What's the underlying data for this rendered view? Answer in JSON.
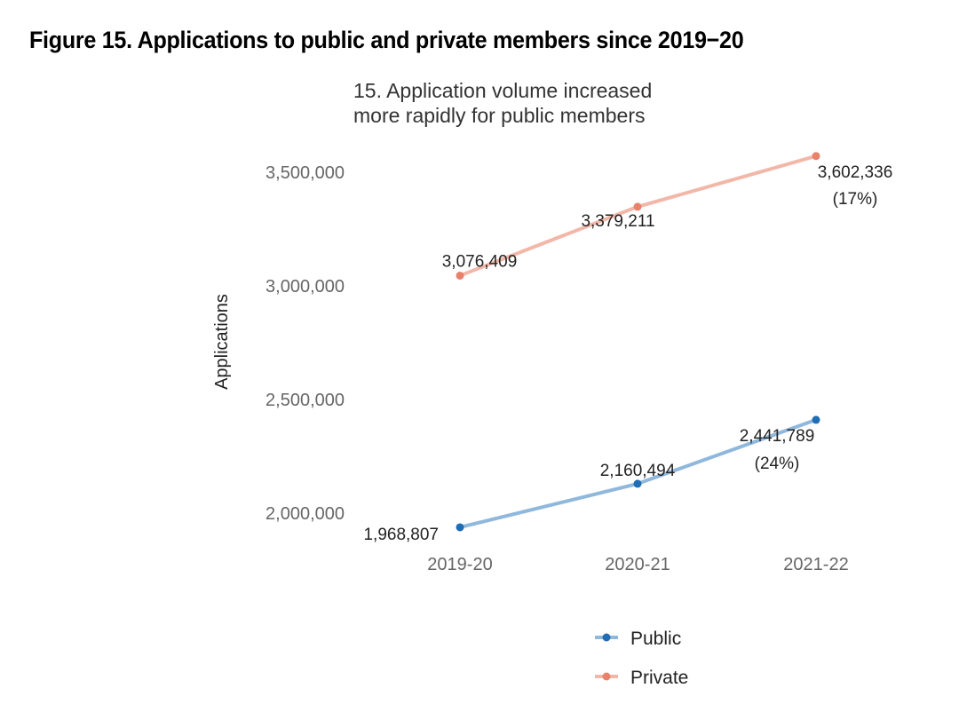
{
  "figure_title": "Figure 15. Applications to public and private members since 2019−20",
  "chart_data": {
    "type": "line",
    "title_lines": [
      "15. Application volume increased",
      "more rapidly for public members"
    ],
    "xlabel": "",
    "ylabel": "Applications",
    "categories": [
      "2019-20",
      "2020-21",
      "2021-22"
    ],
    "ylim": [
      1950000,
      3650000
    ],
    "yticks": [
      2000000,
      2500000,
      3000000,
      3500000
    ],
    "ytick_labels": [
      "2,000,000",
      "2,500,000",
      "3,000,000",
      "3,500,000"
    ],
    "grid": false,
    "legend_position": "bottom",
    "series": [
      {
        "name": "Public",
        "color": "#1f6db5",
        "line_color": "#8fb8dc",
        "values": [
          1968807,
          2160494,
          2441789
        ],
        "labels": [
          "1,968,807",
          "2,160,494",
          "2,441,789"
        ],
        "end_annotation": "(24%)"
      },
      {
        "name": "Private",
        "color": "#e8826b",
        "line_color": "#f2b7a8",
        "values": [
          3076409,
          3379211,
          3602336
        ],
        "labels": [
          "3,076,409",
          "3,379,211",
          "3,602,336"
        ],
        "end_annotation": "(17%)"
      }
    ]
  }
}
